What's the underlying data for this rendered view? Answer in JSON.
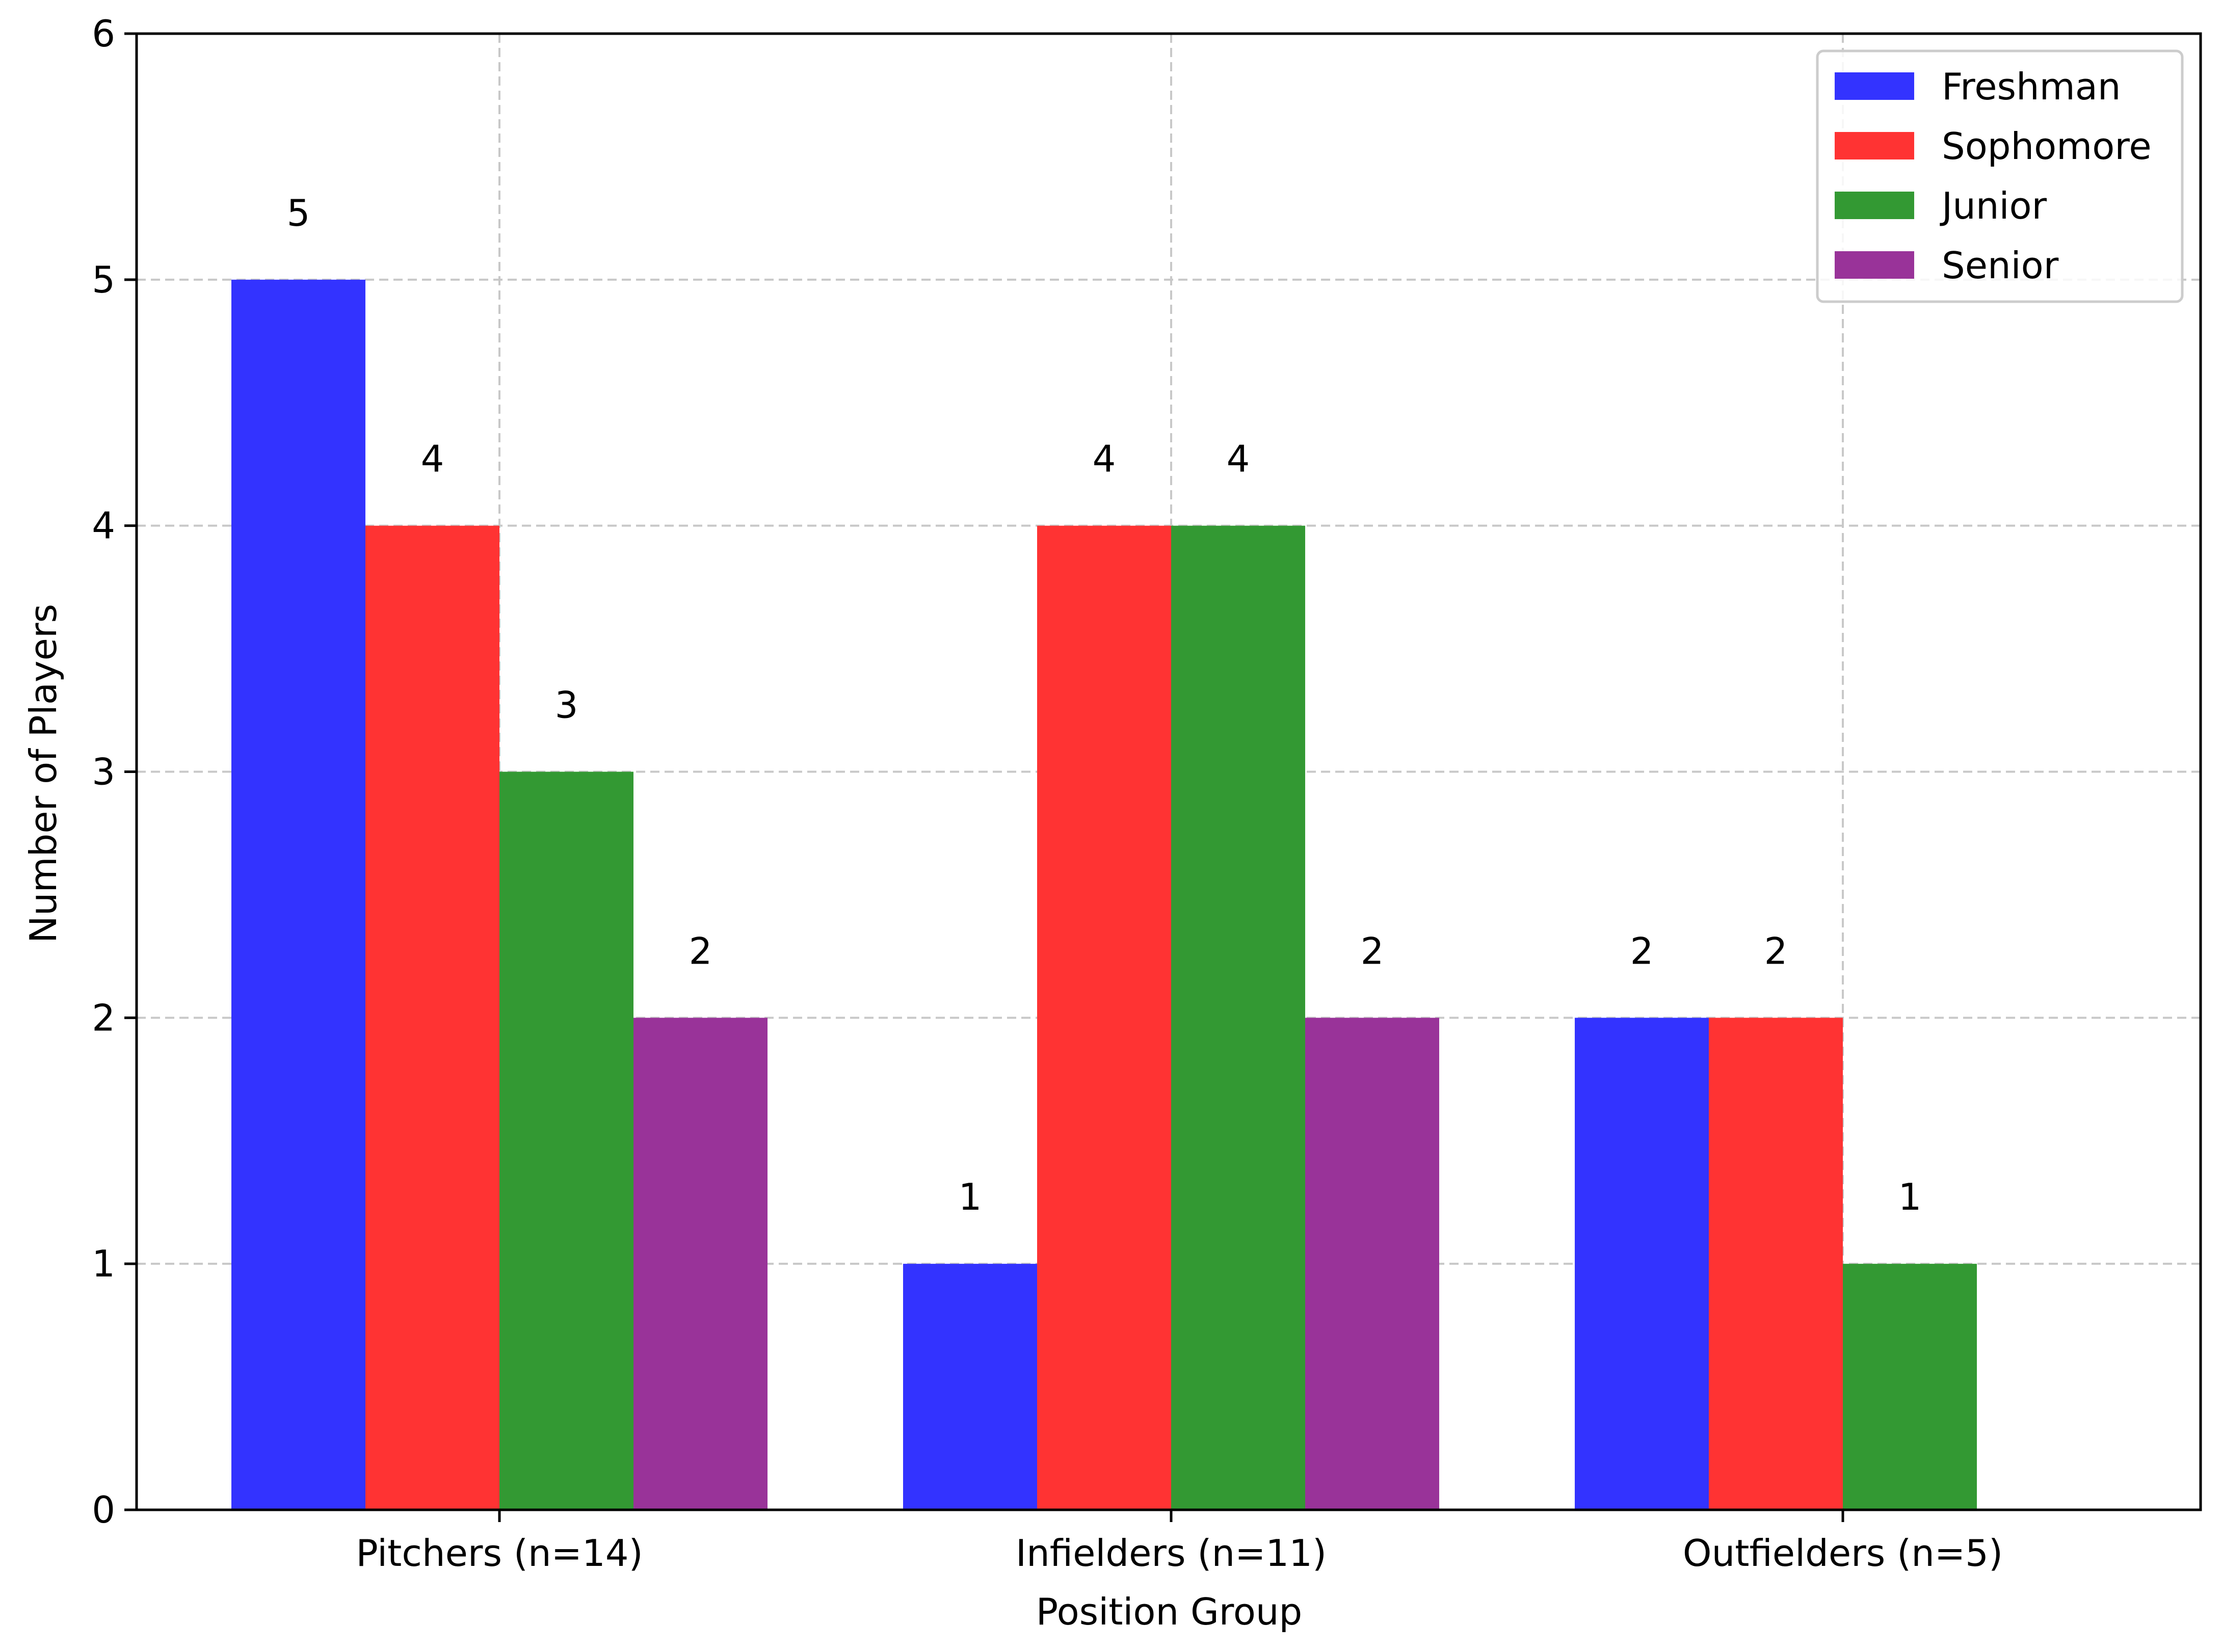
{
  "chart_data": {
    "type": "bar",
    "title": "",
    "xlabel": "Position Group",
    "ylabel": "Number of Players",
    "categories": [
      "Pitchers (n=14)",
      "Infielders (n=11)",
      "Outfielders (n=5)"
    ],
    "series": [
      {
        "name": "Freshman",
        "color": "#3333ff",
        "values": [
          5,
          1,
          2
        ]
      },
      {
        "name": "Sophomore",
        "color": "#ff3333",
        "values": [
          4,
          4,
          2
        ]
      },
      {
        "name": "Junior",
        "color": "#339933",
        "values": [
          3,
          4,
          1
        ]
      },
      {
        "name": "Senior",
        "color": "#993399",
        "values": [
          2,
          2,
          0
        ]
      }
    ],
    "ylim": [
      0,
      6
    ],
    "yticks": [
      "0",
      "1",
      "2",
      "3",
      "4",
      "5",
      "6"
    ],
    "grid": true,
    "legend_position": "top-right",
    "data_labels": true
  }
}
